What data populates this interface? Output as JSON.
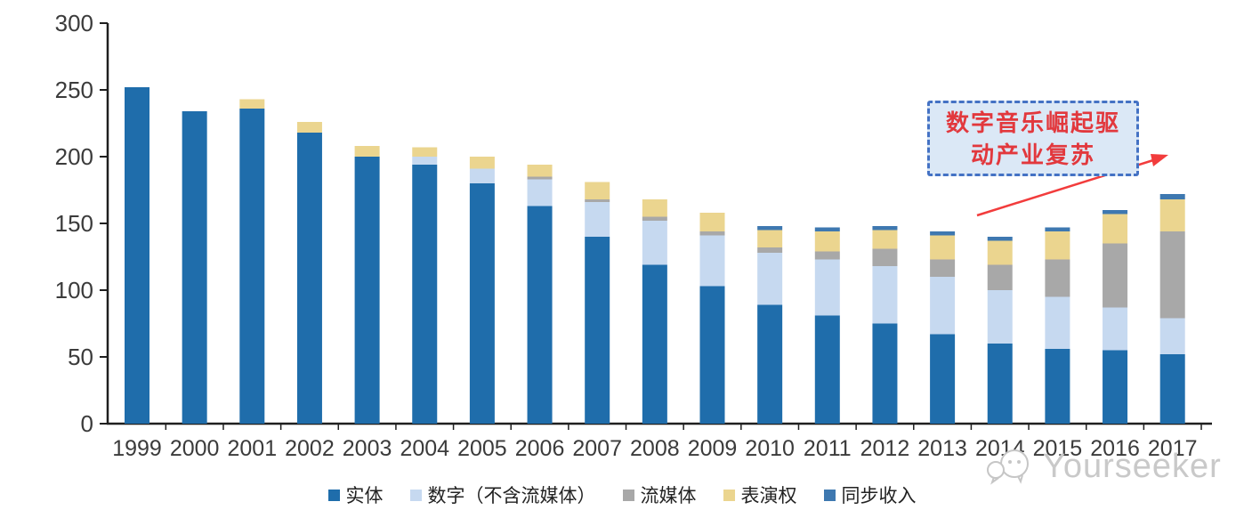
{
  "page": {
    "background": "#ffffff"
  },
  "chart_data": {
    "type": "bar",
    "stacked": true,
    "title": "",
    "categories": [
      1999,
      2000,
      2001,
      2002,
      2003,
      2004,
      2005,
      2006,
      2007,
      2008,
      2009,
      2010,
      2011,
      2012,
      2013,
      2014,
      2015,
      2016,
      2017
    ],
    "series": [
      {
        "key": "physical",
        "name": "实体",
        "color": "#1f6dab",
        "values": [
          252,
          234,
          236,
          218,
          200,
          194,
          180,
          163,
          140,
          119,
          103,
          89,
          81,
          75,
          67,
          60,
          56,
          55,
          52
        ]
      },
      {
        "key": "digital",
        "name": "数字（不含流媒体）",
        "color": "#c6d9f0",
        "values": [
          0,
          0,
          0,
          0,
          0,
          6,
          11,
          20,
          26,
          33,
          38,
          39,
          42,
          43,
          43,
          40,
          39,
          32,
          27
        ]
      },
      {
        "key": "streaming",
        "name": "流媒体",
        "color": "#a8a8a8",
        "values": [
          0,
          0,
          0,
          0,
          0,
          0,
          0,
          2,
          2,
          3,
          3,
          4,
          6,
          13,
          13,
          19,
          28,
          48,
          65
        ]
      },
      {
        "key": "performance",
        "name": "表演权",
        "color": "#ebd58f",
        "values": [
          0,
          0,
          7,
          8,
          8,
          7,
          9,
          9,
          13,
          13,
          14,
          13,
          15,
          14,
          18,
          18,
          21,
          22,
          24
        ]
      },
      {
        "key": "sync",
        "name": "同步收入",
        "color": "#3e78b0",
        "values": [
          0,
          0,
          0,
          0,
          0,
          0,
          0,
          0,
          0,
          0,
          0,
          3,
          3,
          3,
          3,
          3,
          3,
          3,
          4
        ]
      }
    ],
    "totals": [
      252,
      234,
      243,
      226,
      208,
      207,
      200,
      194,
      181,
      168,
      158,
      148,
      147,
      148,
      144,
      140,
      147,
      160,
      172
    ],
    "xlabel": "",
    "ylabel": "",
    "ylim": [
      0,
      300
    ],
    "ytick_step": 50,
    "grid": false,
    "legend_position": "bottom"
  },
  "annotation": {
    "line1": "数字音乐崛起驱",
    "line2": "动产业复苏",
    "box_fill": "#dbe8f6",
    "box_border": "#4472c4",
    "text_color": "#e2383d",
    "arrow_color": "#f23c3c"
  },
  "watermark": {
    "text": "Yourseeker",
    "color": "#c9c9c9"
  },
  "colors": {
    "axis_line": "#1f1f1f",
    "tick_label": "#3b3b3b"
  }
}
